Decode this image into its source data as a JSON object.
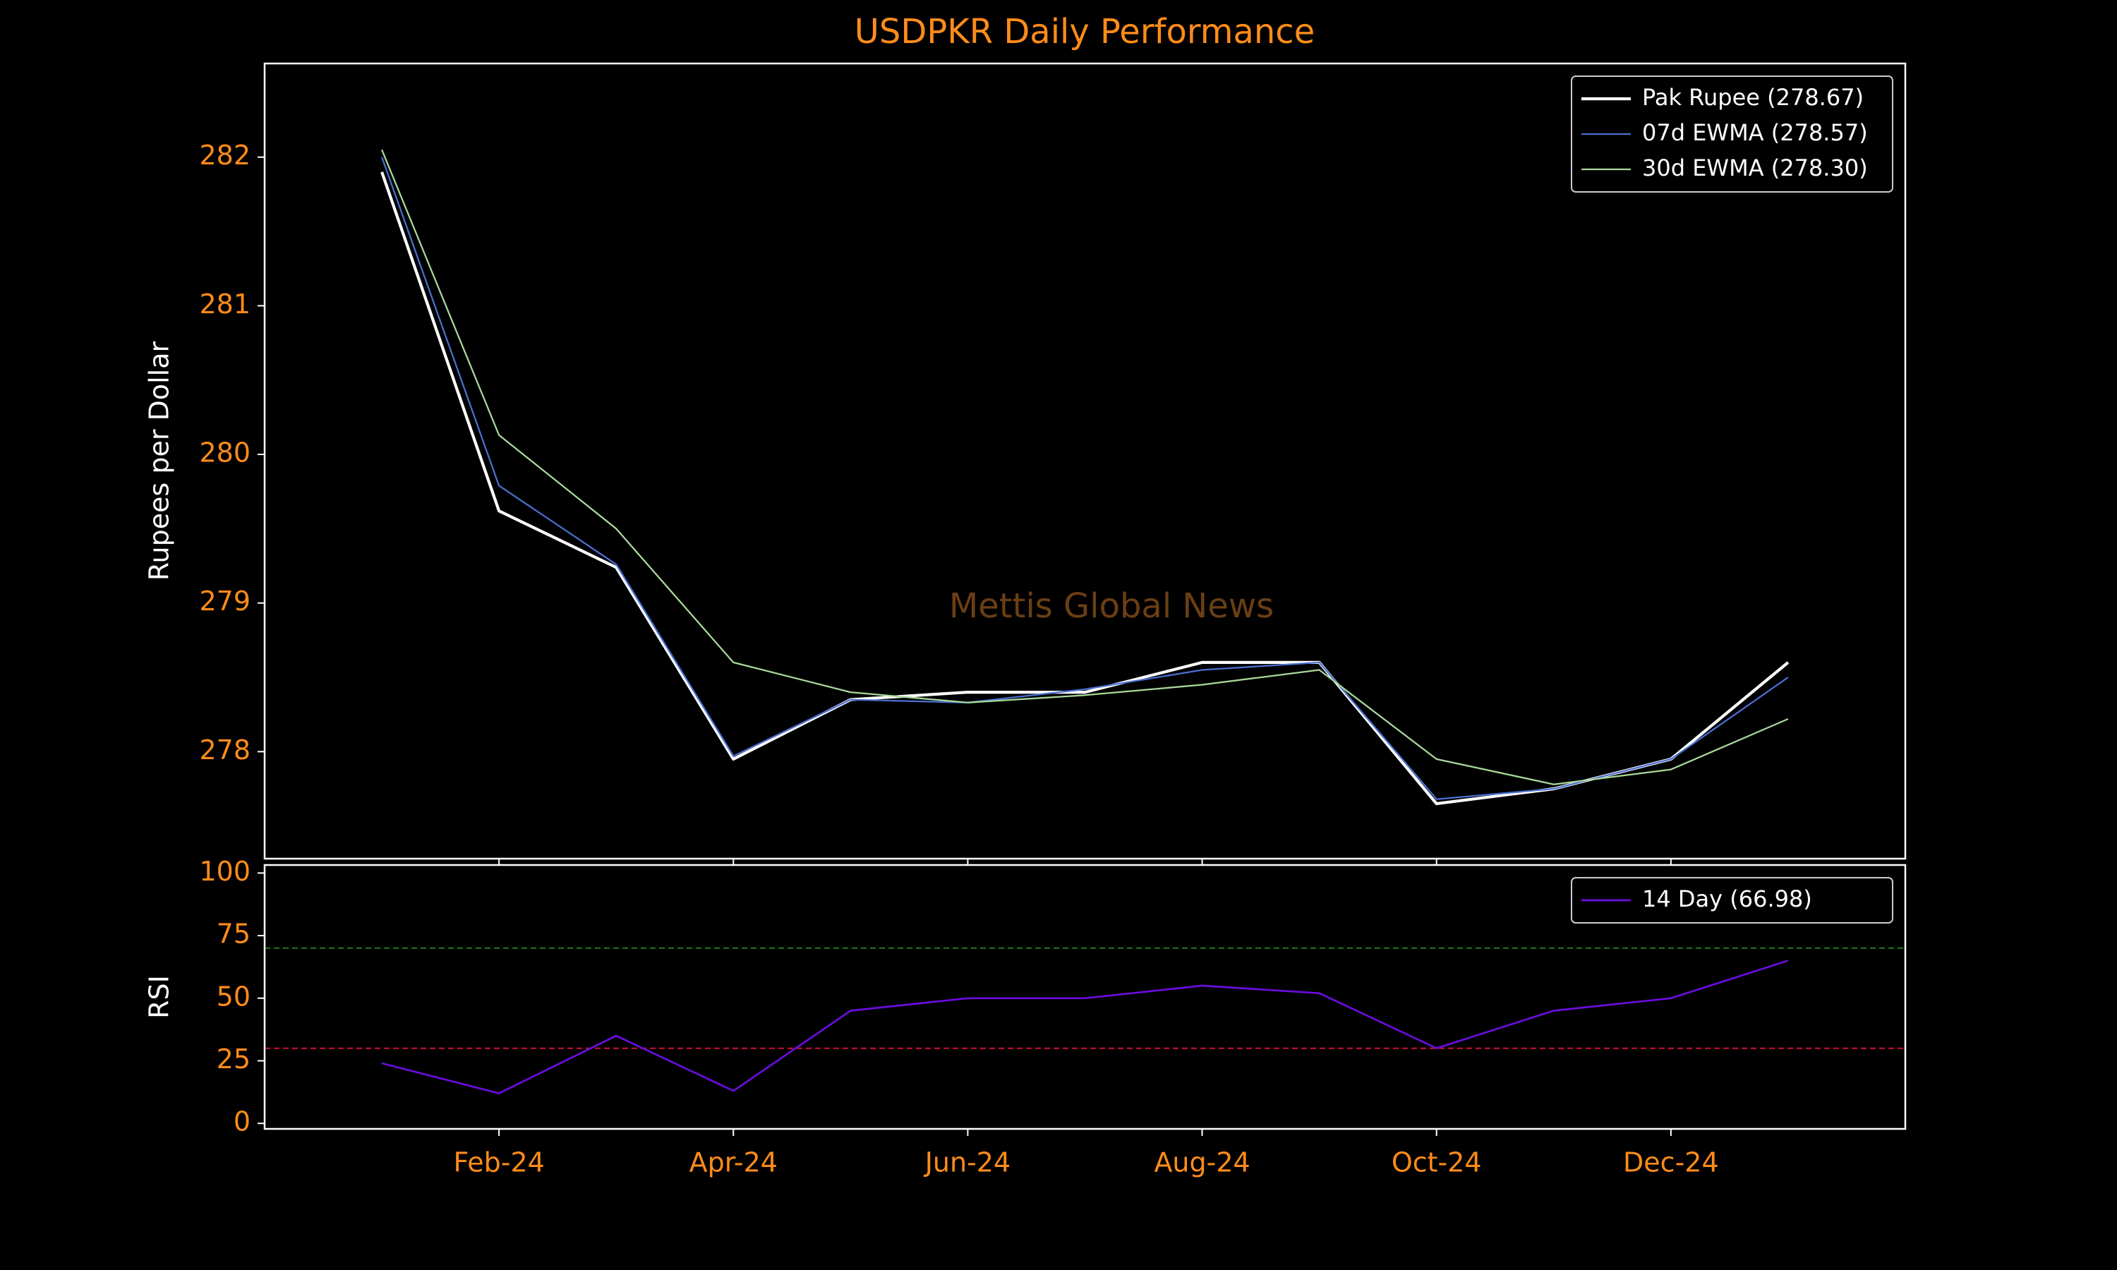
{
  "chart_data": [
    {
      "type": "line",
      "title": "USDPKR Daily Performance",
      "ylabel": "Rupees per Dollar",
      "watermark": "Mettis Global News",
      "x": [
        "2024-01",
        "2024-02",
        "2024-03",
        "2024-04",
        "2024-05",
        "2024-06",
        "2024-07",
        "2024-08",
        "2024-09",
        "2024-10",
        "2024-11",
        "2024-12",
        "2025-01"
      ],
      "xlim": [
        "2023-12",
        "2025-02"
      ],
      "series": [
        {
          "name": "Pak Rupee (278.67)",
          "color": "#ffffff",
          "width": 2.2,
          "values": [
            281.9,
            279.62,
            279.24,
            277.95,
            278.35,
            278.4,
            278.4,
            278.6,
            278.6,
            277.65,
            277.75,
            277.95,
            278.6
          ]
        },
        {
          "name": "07d EWMA (278.57)",
          "color": "#4a6fd0",
          "width": 1.2,
          "values": [
            282.0,
            279.79,
            279.26,
            277.97,
            278.35,
            278.33,
            278.42,
            278.55,
            278.6,
            277.68,
            277.75,
            277.95,
            278.5
          ]
        },
        {
          "name": "30d EWMA (278.30)",
          "color": "#a8d89a",
          "width": 1.2,
          "values": [
            282.05,
            280.13,
            279.5,
            278.6,
            278.4,
            278.33,
            278.38,
            278.45,
            278.55,
            277.95,
            277.78,
            277.88,
            278.22
          ]
        }
      ],
      "ylim": [
        277.28,
        282.63
      ],
      "yticks": [
        278,
        279,
        280,
        281,
        282
      ],
      "legend": "upper right"
    },
    {
      "type": "line",
      "ylabel": "RSI",
      "x": [
        "2024-01",
        "2024-02",
        "2024-03",
        "2024-04",
        "2024-05",
        "2024-06",
        "2024-07",
        "2024-08",
        "2024-09",
        "2024-10",
        "2024-11",
        "2024-12",
        "2025-01"
      ],
      "xlim": [
        "2023-12",
        "2025-02"
      ],
      "series": [
        {
          "name": "14 Day (66.98)",
          "color": "#6a0ddf",
          "width": 1.4,
          "values": [
            24,
            12,
            35,
            13,
            45,
            50,
            50,
            55,
            52,
            30,
            45,
            50,
            65
          ]
        }
      ],
      "hlines": [
        {
          "value": 70,
          "color": "#1f7a1f"
        },
        {
          "value": 30,
          "color": "#d0103a"
        }
      ],
      "ylim": [
        -2.2,
        103.2
      ],
      "yticks": [
        0,
        25,
        50,
        75,
        100
      ],
      "legend": "upper right",
      "xticks": [
        {
          "value": "2024-02",
          "label": "Feb-24"
        },
        {
          "value": "2024-04",
          "label": "Apr-24"
        },
        {
          "value": "2024-06",
          "label": "Jun-24"
        },
        {
          "value": "2024-08",
          "label": "Aug-24"
        },
        {
          "value": "2024-10",
          "label": "Oct-24"
        },
        {
          "value": "2024-12",
          "label": "Dec-24"
        }
      ]
    }
  ]
}
